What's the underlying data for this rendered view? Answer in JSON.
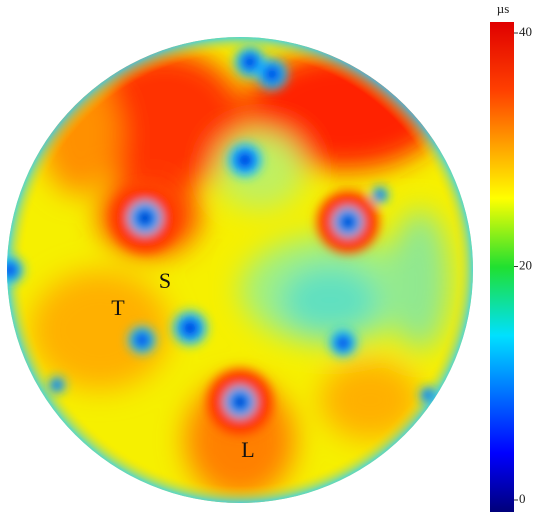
{
  "image": {
    "labels": [
      "T",
      "S",
      "L"
    ]
  },
  "colorbar": {
    "unit": "µs",
    "lim": [
      0,
      40
    ],
    "ticks": [
      0,
      20,
      40
    ]
  }
}
